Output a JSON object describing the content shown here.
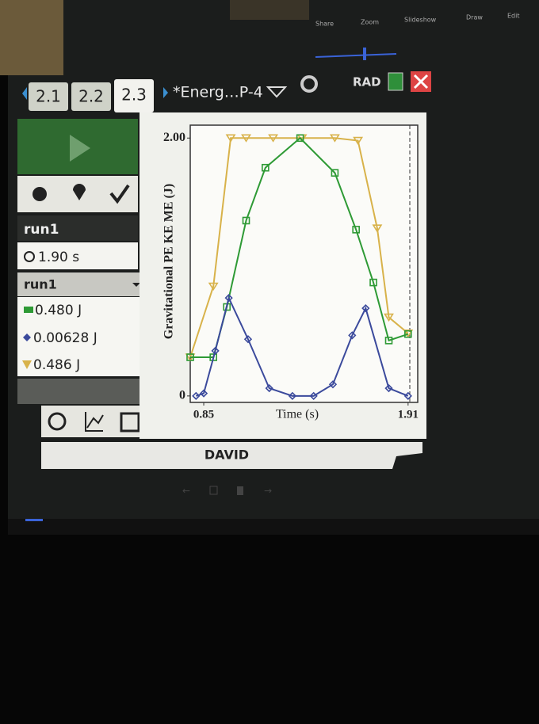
{
  "toolbar": [
    "Share",
    "Zoom",
    "Slideshow",
    "Draw",
    "Edit"
  ],
  "tabs": [
    "2.1",
    "2.2",
    "2.3"
  ],
  "document_title": "*Energ…P-4",
  "angle_mode": "RAD",
  "panel": {
    "run_label": "run1",
    "time": "1.90 s",
    "run_select": "run1",
    "readings": [
      "0.480 J",
      "0.00628 J",
      "0.486 J"
    ]
  },
  "chart_data": {
    "type": "line",
    "y_label": "Gravitational PE KE ME (J)",
    "x_label": "Time (s)",
    "xlim": [
      0.78,
      1.96
    ],
    "ylim": [
      -0.05,
      2.1
    ],
    "xticks": [
      0.85,
      1.91
    ],
    "yticks": [
      0,
      {
        "value": 2,
        "label": "2.00"
      }
    ],
    "series": [
      {
        "color": "#d8b24a",
        "marker": "triangle",
        "x": [
          0.78,
          0.9,
          0.99,
          1.07,
          1.21,
          1.36,
          1.53,
          1.65,
          1.75,
          1.81,
          1.91
        ],
        "values": [
          0.3,
          0.85,
          2.0,
          2.0,
          2.0,
          2.0,
          2.0,
          1.98,
          1.3,
          0.61,
          0.486
        ]
      },
      {
        "color": "#2e9a35",
        "marker": "square",
        "x": [
          0.78,
          0.9,
          0.97,
          1.07,
          1.17,
          1.35,
          1.53,
          1.64,
          1.73,
          1.81,
          1.91
        ],
        "values": [
          0.3,
          0.3,
          0.69,
          1.36,
          1.77,
          2.0,
          1.73,
          1.29,
          0.88,
          0.43,
          0.48
        ]
      },
      {
        "color": "#3b4a9c",
        "marker": "diamond",
        "x": [
          0.81,
          0.85,
          0.91,
          0.98,
          1.08,
          1.19,
          1.31,
          1.42,
          1.52,
          1.62,
          1.69,
          1.81,
          1.91
        ],
        "values": [
          0,
          0.02,
          0.35,
          0.76,
          0.44,
          0.06,
          0,
          0,
          0.09,
          0.47,
          0.68,
          0.06,
          0
        ]
      }
    ]
  },
  "footer": "DAVID"
}
